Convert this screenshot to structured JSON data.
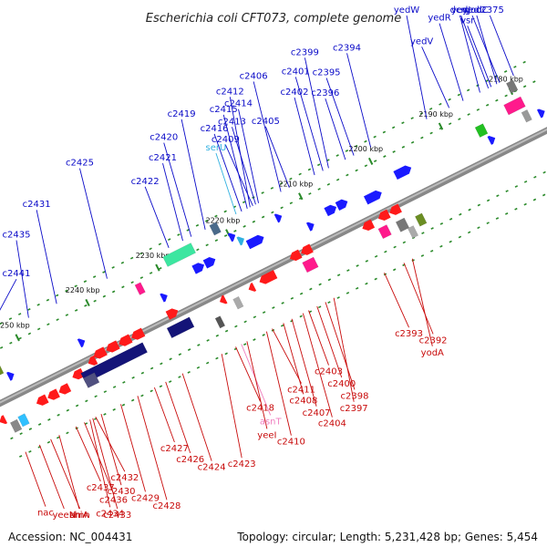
{
  "title": "Escherichia coli CFT073, complete genome",
  "footer": {
    "accession": "Accession: NC_004431",
    "topology": "Topology: circular; Length: 5,231,428 bp; Genes: 5,454"
  },
  "colors": {
    "top_strand_label": "#0a0ac8",
    "bottom_strand_label": "#c80a0a",
    "trna_top": "#30b0e0",
    "trna_bottom": "#f080c0",
    "backbone": "#888888",
    "tick": "#2a8a2a"
  },
  "kbp_marks": [
    {
      "label": "2180 kbp",
      "t": 0.96
    },
    {
      "label": "2190 kbp",
      "t": 0.835
    },
    {
      "label": "2200 kbp",
      "t": 0.71
    },
    {
      "label": "2210 kbp",
      "t": 0.585
    },
    {
      "label": "2220 kbp",
      "t": 0.455
    },
    {
      "label": "2230 kbp",
      "t": 0.33
    },
    {
      "label": "2240 kbp",
      "t": 0.205
    },
    {
      "label": "2250 kbp",
      "t": 0.08
    }
  ],
  "top_labels": [
    {
      "text": "c2441",
      "t": 0.03,
      "type": "gene"
    },
    {
      "text": "c2435",
      "t": 0.11,
      "type": "gene"
    },
    {
      "text": "c2431",
      "t": 0.16,
      "type": "gene"
    },
    {
      "text": "c2425",
      "t": 0.25,
      "type": "gene"
    },
    {
      "text": "c2422",
      "t": 0.36,
      "type": "gene"
    },
    {
      "text": "c2421",
      "t": 0.385,
      "type": "gene"
    },
    {
      "text": "c2420",
      "t": 0.4,
      "type": "gene"
    },
    {
      "text": "c2419",
      "t": 0.425,
      "type": "gene"
    },
    {
      "text": "serU",
      "t": 0.48,
      "type": "trna"
    },
    {
      "text": "c2416",
      "t": 0.49,
      "type": "gene"
    },
    {
      "text": "c2415",
      "t": 0.5,
      "type": "gene"
    },
    {
      "text": "c2412",
      "t": 0.505,
      "type": "gene"
    },
    {
      "text": "c2409",
      "t": 0.51,
      "type": "gene"
    },
    {
      "text": "c2413",
      "t": 0.515,
      "type": "gene"
    },
    {
      "text": "c2414",
      "t": 0.52,
      "type": "gene"
    },
    {
      "text": "c2406",
      "t": 0.56,
      "type": "gene"
    },
    {
      "text": "c2405",
      "t": 0.575,
      "type": "gene"
    },
    {
      "text": "c2402",
      "t": 0.62,
      "type": "gene"
    },
    {
      "text": "c2401",
      "t": 0.635,
      "type": "gene"
    },
    {
      "text": "c2399",
      "t": 0.645,
      "type": "gene"
    },
    {
      "text": "c2396",
      "t": 0.675,
      "type": "gene"
    },
    {
      "text": "c2395",
      "t": 0.69,
      "type": "gene"
    },
    {
      "text": "c2394",
      "t": 0.72,
      "type": "gene"
    },
    {
      "text": "yedW",
      "t": 0.82,
      "type": "gene"
    },
    {
      "text": "yedV",
      "t": 0.86,
      "type": "gene"
    },
    {
      "text": "yedR",
      "t": 0.885,
      "type": "gene"
    },
    {
      "text": "dcm",
      "t": 0.915,
      "type": "gene"
    },
    {
      "text": "yedJ",
      "t": 0.93,
      "type": "gene"
    },
    {
      "text": "vsr",
      "t": 0.935,
      "type": "gene"
    },
    {
      "text": "yodC",
      "t": 0.945,
      "type": "gene"
    },
    {
      "text": "yedI",
      "t": 0.95,
      "type": "gene"
    },
    {
      "text": "c2375",
      "t": 0.975,
      "type": "gene"
    }
  ],
  "bottom_labels": [
    {
      "text": "nac",
      "t": 0.01,
      "type": "gene"
    },
    {
      "text": "yeeN",
      "t": 0.035,
      "type": "gene"
    },
    {
      "text": "amn",
      "t": 0.055,
      "type": "gene"
    },
    {
      "text": "shiA",
      "t": 0.07,
      "type": "gene"
    },
    {
      "text": "c2437",
      "t": 0.1,
      "type": "gene"
    },
    {
      "text": "c2436",
      "t": 0.115,
      "type": "gene"
    },
    {
      "text": "c2434",
      "t": 0.125,
      "type": "gene"
    },
    {
      "text": "c2433",
      "t": 0.13,
      "type": "gene"
    },
    {
      "text": "c2432",
      "t": 0.135,
      "type": "gene"
    },
    {
      "text": "c2430",
      "t": 0.145,
      "type": "gene"
    },
    {
      "text": "c2429",
      "t": 0.18,
      "type": "gene"
    },
    {
      "text": "c2428",
      "t": 0.21,
      "type": "gene"
    },
    {
      "text": "c2427",
      "t": 0.24,
      "type": "gene"
    },
    {
      "text": "c2426",
      "t": 0.26,
      "type": "gene"
    },
    {
      "text": "c2424",
      "t": 0.29,
      "type": "gene"
    },
    {
      "text": "c2423",
      "t": 0.36,
      "type": "gene"
    },
    {
      "text": "c2418",
      "t": 0.385,
      "type": "gene"
    },
    {
      "text": "asnT",
      "t": 0.395,
      "type": "trna"
    },
    {
      "text": "yeeI",
      "t": 0.405,
      "type": "gene"
    },
    {
      "text": "c2410",
      "t": 0.44,
      "type": "gene"
    },
    {
      "text": "c2411",
      "t": 0.45,
      "type": "gene"
    },
    {
      "text": "c2408",
      "t": 0.47,
      "type": "gene"
    },
    {
      "text": "c2407",
      "t": 0.485,
      "type": "gene"
    },
    {
      "text": "c2404",
      "t": 0.505,
      "type": "gene"
    },
    {
      "text": "c2403",
      "t": 0.515,
      "type": "gene"
    },
    {
      "text": "c2400",
      "t": 0.53,
      "type": "gene"
    },
    {
      "text": "c2398",
      "t": 0.545,
      "type": "gene"
    },
    {
      "text": "c2397",
      "t": 0.56,
      "type": "gene"
    },
    {
      "text": "c2393",
      "t": 0.65,
      "type": "gene"
    },
    {
      "text": "c2392",
      "t": 0.685,
      "type": "gene"
    },
    {
      "text": "yodA",
      "t": 0.7,
      "type": "gene"
    }
  ],
  "features": [
    {
      "t": 0.03,
      "ring": -34,
      "len": 0.01,
      "color": "#6b8e23",
      "kind": "box"
    },
    {
      "t": 0.045,
      "ring": -22,
      "len": 0.01,
      "color": "#1a1aff",
      "kind": "arrow"
    },
    {
      "t": 0.17,
      "ring": -20,
      "len": 0.008,
      "color": "#1a1aff",
      "kind": "arrow"
    },
    {
      "t": 0.29,
      "ring": -44,
      "len": 0.01,
      "color": "#ff1a8c",
      "kind": "box"
    },
    {
      "t": 0.32,
      "ring": -24,
      "len": 0.008,
      "color": "#1a1aff",
      "kind": "arrow"
    },
    {
      "t": 0.37,
      "ring": -58,
      "len": 0.05,
      "color": "#3ce6a0",
      "kind": "box"
    },
    {
      "t": 0.4,
      "ring": -36,
      "len": 0.04,
      "color": "#1a1aff",
      "kind": "arrow"
    },
    {
      "t": 0.44,
      "ring": -66,
      "len": 0.012,
      "color": "#4a6a8a",
      "kind": "box"
    },
    {
      "t": 0.46,
      "ring": -50,
      "len": 0.01,
      "color": "#1a1aff",
      "kind": "arrow"
    },
    {
      "t": 0.47,
      "ring": -42,
      "len": 0.01,
      "color": "#30b0e0",
      "kind": "arrow"
    },
    {
      "t": 0.49,
      "ring": -34,
      "len": 0.03,
      "color": "#1a1aff",
      "kind": "arrow"
    },
    {
      "t": 0.54,
      "ring": -46,
      "len": 0.008,
      "color": "#1a1aff",
      "kind": "arrow"
    },
    {
      "t": 0.58,
      "ring": -22,
      "len": 0.012,
      "color": "#1a1aff",
      "kind": "arrow"
    },
    {
      "t": 0.63,
      "ring": -28,
      "len": 0.04,
      "color": "#1a1aff",
      "kind": "arrow"
    },
    {
      "t": 0.69,
      "ring": -20,
      "len": 0.03,
      "color": "#1a1aff",
      "kind": "arrow"
    },
    {
      "t": 0.75,
      "ring": -30,
      "len": 0.03,
      "color": "#1a1aff",
      "kind": "arrow"
    },
    {
      "t": 0.89,
      "ring": -32,
      "len": 0.014,
      "color": "#22c022",
      "kind": "box"
    },
    {
      "t": 0.9,
      "ring": -18,
      "len": 0.012,
      "color": "#1a1aff",
      "kind": "arrow"
    },
    {
      "t": 0.955,
      "ring": -40,
      "len": 0.03,
      "color": "#ff1a8c",
      "kind": "box"
    },
    {
      "t": 0.965,
      "ring": -60,
      "len": 0.012,
      "color": "#777777",
      "kind": "box"
    },
    {
      "t": 0.99,
      "ring": -20,
      "len": 0.012,
      "color": "#1a1aff",
      "kind": "arrow"
    },
    {
      "t": 0.0,
      "ring": 18,
      "len": 0.012,
      "color": "#ff1a1a",
      "kind": "arrow"
    },
    {
      "t": 0.015,
      "ring": 30,
      "len": 0.012,
      "color": "#888888",
      "kind": "box"
    },
    {
      "t": 0.03,
      "ring": 28,
      "len": 0.012,
      "color": "#30c0ff",
      "kind": "box"
    },
    {
      "t": 0.09,
      "ring": 18,
      "len": 0.06,
      "color": "#ff1a1a",
      "kind": "arrow"
    },
    {
      "t": 0.14,
      "ring": 10,
      "len": 0.02,
      "color": "#ff1a1a",
      "kind": "arrow"
    },
    {
      "t": 0.17,
      "ring": 4,
      "len": 0.015,
      "color": "#ff1a1a",
      "kind": "arrow"
    },
    {
      "t": 0.22,
      "ring": 0,
      "len": 0.09,
      "color": "#ff1a1a",
      "kind": "arrow"
    },
    {
      "t": 0.2,
      "ring": 16,
      "len": 0.11,
      "color": "#141478",
      "kind": "box"
    },
    {
      "t": 0.155,
      "ring": 22,
      "len": 0.02,
      "color": "#505080",
      "kind": "box"
    },
    {
      "t": 0.32,
      "ring": -4,
      "len": 0.02,
      "color": "#ff1a1a",
      "kind": "arrow"
    },
    {
      "t": 0.32,
      "ring": 14,
      "len": 0.04,
      "color": "#141478",
      "kind": "box"
    },
    {
      "t": 0.38,
      "ring": 28,
      "len": 0.008,
      "color": "#555555",
      "kind": "box"
    },
    {
      "t": 0.42,
      "ring": 18,
      "len": 0.01,
      "color": "#aaaaaa",
      "kind": "box"
    },
    {
      "t": 0.4,
      "ring": 8,
      "len": 0.01,
      "color": "#ff1a1a",
      "kind": "arrow"
    },
    {
      "t": 0.45,
      "ring": 10,
      "len": 0.01,
      "color": "#ff1a1a",
      "kind": "arrow"
    },
    {
      "t": 0.48,
      "ring": 8,
      "len": 0.03,
      "color": "#ff1a1a",
      "kind": "arrow"
    },
    {
      "t": 0.545,
      "ring": 0,
      "len": 0.04,
      "color": "#ff1a1a",
      "kind": "arrow"
    },
    {
      "t": 0.55,
      "ring": 16,
      "len": 0.02,
      "color": "#ff1a8c",
      "kind": "box"
    },
    {
      "t": 0.66,
      "ring": 6,
      "len": 0.02,
      "color": "#ff1a1a",
      "kind": "arrow"
    },
    {
      "t": 0.7,
      "ring": 4,
      "len": 0.04,
      "color": "#ff1a1a",
      "kind": "arrow"
    },
    {
      "t": 0.68,
      "ring": 20,
      "len": 0.015,
      "color": "#ff1a8c",
      "kind": "box"
    },
    {
      "t": 0.71,
      "ring": 22,
      "len": 0.015,
      "color": "#777777",
      "kind": "box"
    },
    {
      "t": 0.72,
      "ring": 34,
      "len": 0.01,
      "color": "#aaaaaa",
      "kind": "box"
    },
    {
      "t": 0.74,
      "ring": 26,
      "len": 0.012,
      "color": "#6b8e23",
      "kind": "box"
    },
    {
      "t": 0.965,
      "ring": -24,
      "len": 0.01,
      "color": "#999999",
      "kind": "box"
    },
    {
      "t": 0.985,
      "ring": 8,
      "len": 0.01,
      "color": "#ff1a1a",
      "kind": "arrow"
    }
  ]
}
